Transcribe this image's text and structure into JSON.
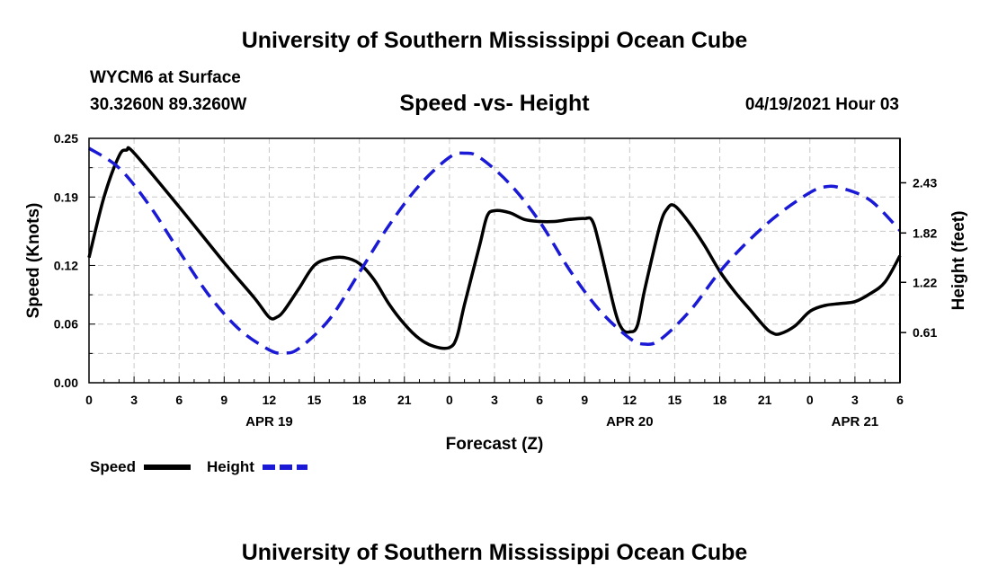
{
  "header": {
    "title": "University of Southern Mississippi Ocean Cube",
    "station": "WYCM6 at Surface",
    "coords": "30.3260N  89.3260W",
    "datetime": "04/19/2021 Hour 03"
  },
  "footer": {
    "title": "University of Southern Mississippi Ocean Cube"
  },
  "chart_data": {
    "type": "line",
    "title": "Speed -vs- Height",
    "xlabel": "Forecast (Z)",
    "ylabel_left": "Speed (Knots)",
    "ylabel_right": "Height (feet)",
    "x_range_hours": [
      0,
      54
    ],
    "x_ticks": [
      {
        "h": 0,
        "label": "0"
      },
      {
        "h": 3,
        "label": "3"
      },
      {
        "h": 6,
        "label": "6"
      },
      {
        "h": 9,
        "label": "9"
      },
      {
        "h": 12,
        "label": "12"
      },
      {
        "h": 15,
        "label": "15"
      },
      {
        "h": 18,
        "label": "18"
      },
      {
        "h": 21,
        "label": "21"
      },
      {
        "h": 24,
        "label": "0"
      },
      {
        "h": 27,
        "label": "3"
      },
      {
        "h": 30,
        "label": "6"
      },
      {
        "h": 33,
        "label": "9"
      },
      {
        "h": 36,
        "label": "12"
      },
      {
        "h": 39,
        "label": "15"
      },
      {
        "h": 42,
        "label": "18"
      },
      {
        "h": 45,
        "label": "21"
      },
      {
        "h": 48,
        "label": "0"
      },
      {
        "h": 51,
        "label": "3"
      },
      {
        "h": 54,
        "label": "6"
      }
    ],
    "date_labels": [
      {
        "h": 12,
        "label": "APR 19"
      },
      {
        "h": 36,
        "label": "APR 20"
      },
      {
        "h": 51,
        "label": "APR 21"
      }
    ],
    "y_left": {
      "range": [
        0,
        0.25
      ],
      "ticks": [
        "0.00",
        "0.06",
        "0.12",
        "0.19",
        "0.25"
      ]
    },
    "y_right": {
      "range": [
        0,
        2.97
      ],
      "ticks": [
        "0.61",
        "1.22",
        "1.82",
        "2.43"
      ]
    },
    "series": [
      {
        "name": "Speed",
        "axis": "left",
        "color": "#000000",
        "style": "solid",
        "points": [
          [
            0,
            0.128
          ],
          [
            1,
            0.19
          ],
          [
            2,
            0.232
          ],
          [
            2.5,
            0.238
          ],
          [
            3,
            0.235
          ],
          [
            6,
            0.18
          ],
          [
            9,
            0.123
          ],
          [
            11,
            0.087
          ],
          [
            12,
            0.067
          ],
          [
            12.5,
            0.067
          ],
          [
            13,
            0.074
          ],
          [
            14,
            0.097
          ],
          [
            15,
            0.12
          ],
          [
            16,
            0.127
          ],
          [
            17,
            0.128
          ],
          [
            18,
            0.122
          ],
          [
            19,
            0.105
          ],
          [
            20,
            0.08
          ],
          [
            21,
            0.06
          ],
          [
            22,
            0.045
          ],
          [
            23,
            0.037
          ],
          [
            24,
            0.036
          ],
          [
            24.5,
            0.047
          ],
          [
            25,
            0.08
          ],
          [
            26,
            0.14
          ],
          [
            26.5,
            0.17
          ],
          [
            27,
            0.176
          ],
          [
            28,
            0.174
          ],
          [
            29,
            0.167
          ],
          [
            30,
            0.165
          ],
          [
            31,
            0.165
          ],
          [
            32,
            0.167
          ],
          [
            33,
            0.168
          ],
          [
            33.5,
            0.166
          ],
          [
            34,
            0.14
          ],
          [
            35,
            0.075
          ],
          [
            35.5,
            0.055
          ],
          [
            36,
            0.052
          ],
          [
            36.5,
            0.058
          ],
          [
            37,
            0.095
          ],
          [
            38,
            0.16
          ],
          [
            38.5,
            0.178
          ],
          [
            39,
            0.181
          ],
          [
            40,
            0.163
          ],
          [
            41,
            0.14
          ],
          [
            42,
            0.114
          ],
          [
            43,
            0.093
          ],
          [
            44,
            0.075
          ],
          [
            45,
            0.057
          ],
          [
            45.5,
            0.051
          ],
          [
            46,
            0.05
          ],
          [
            47,
            0.058
          ],
          [
            48,
            0.073
          ],
          [
            49,
            0.079
          ],
          [
            50,
            0.081
          ],
          [
            51,
            0.083
          ],
          [
            52,
            0.091
          ],
          [
            53,
            0.103
          ],
          [
            54,
            0.13
          ]
        ]
      },
      {
        "name": "Height",
        "axis": "right",
        "color": "#1a1ad6",
        "style": "dashed",
        "points": [
          [
            0,
            2.85
          ],
          [
            2,
            2.61
          ],
          [
            4,
            2.16
          ],
          [
            6,
            1.6
          ],
          [
            8,
            1.06
          ],
          [
            10,
            0.65
          ],
          [
            12,
            0.4
          ],
          [
            13,
            0.36
          ],
          [
            14,
            0.42
          ],
          [
            16,
            0.77
          ],
          [
            18,
            1.34
          ],
          [
            20,
            1.92
          ],
          [
            22,
            2.4
          ],
          [
            24,
            2.74
          ],
          [
            25,
            2.79
          ],
          [
            26,
            2.74
          ],
          [
            28,
            2.42
          ],
          [
            30,
            1.96
          ],
          [
            32,
            1.37
          ],
          [
            34,
            0.88
          ],
          [
            36,
            0.54
          ],
          [
            37,
            0.47
          ],
          [
            38,
            0.52
          ],
          [
            40,
            0.87
          ],
          [
            42,
            1.35
          ],
          [
            44,
            1.74
          ],
          [
            46,
            2.06
          ],
          [
            48,
            2.31
          ],
          [
            49,
            2.38
          ],
          [
            50,
            2.37
          ],
          [
            52,
            2.22
          ],
          [
            54,
            1.85
          ]
        ]
      }
    ],
    "legend": [
      {
        "name": "Speed",
        "color": "#000000",
        "style": "solid"
      },
      {
        "name": "Height",
        "color": "#1a1ad6",
        "style": "dashed"
      }
    ]
  }
}
